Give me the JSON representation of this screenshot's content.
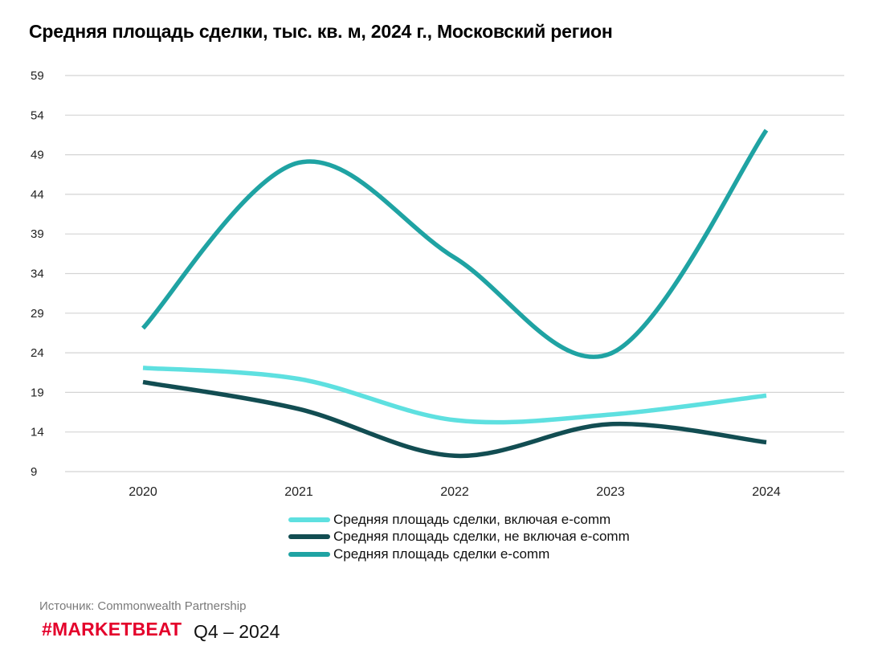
{
  "title": "Средняя площадь сделки, тыс. кв. м, 2024 г., Московский регион",
  "source": "Источник: Commonwealth Partnership",
  "brand": "#MARKETBEAT",
  "period": "Q4  –  2024",
  "chart_data": {
    "type": "line",
    "title": "Средняя площадь сделки, тыс. кв. м, 2024 г., Московский регион",
    "xlabel": "",
    "ylabel": "",
    "categories": [
      "2020",
      "2021",
      "2022",
      "2023",
      "2024"
    ],
    "y_ticks": [
      "59",
      "54",
      "49",
      "44",
      "39",
      "34",
      "29",
      "24",
      "19",
      "14",
      "9"
    ],
    "ylim": [
      9,
      59
    ],
    "grid": true,
    "legend_position": "bottom",
    "smooth": true,
    "series": [
      {
        "name": "Средняя площадь сделки, включая e-comm",
        "color": "#5ee0e0",
        "values": [
          22.1,
          20.7,
          15.5,
          16.2,
          18.6
        ]
      },
      {
        "name": "Средняя площадь сделки, не включая e-comm",
        "color": "#124d52",
        "values": [
          20.3,
          16.9,
          11.0,
          15.0,
          12.7
        ]
      },
      {
        "name": "Средняя площадь сделки e-comm",
        "color": "#1fa3a3",
        "values": [
          27.1,
          48.0,
          36.0,
          23.9,
          52.1
        ]
      }
    ]
  }
}
